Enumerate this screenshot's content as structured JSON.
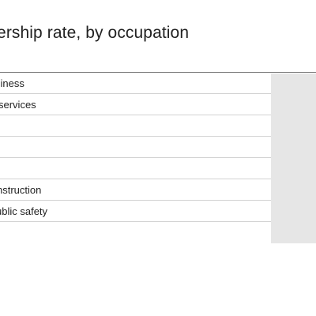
{
  "title": "wnership rate, by occupation",
  "table": {
    "rows": [
      {
        "label": "siness"
      },
      {
        "label": "services"
      },
      {
        "label": ""
      },
      {
        "label": ""
      },
      {
        "label": ""
      },
      {
        "label": "nstruction"
      },
      {
        "label": "ublic safety"
      }
    ]
  },
  "colors": {
    "text": "#222222",
    "rule": "#6f6f6f",
    "divider": "#d2d2d2",
    "shaded_column": "#e6e6e6"
  }
}
